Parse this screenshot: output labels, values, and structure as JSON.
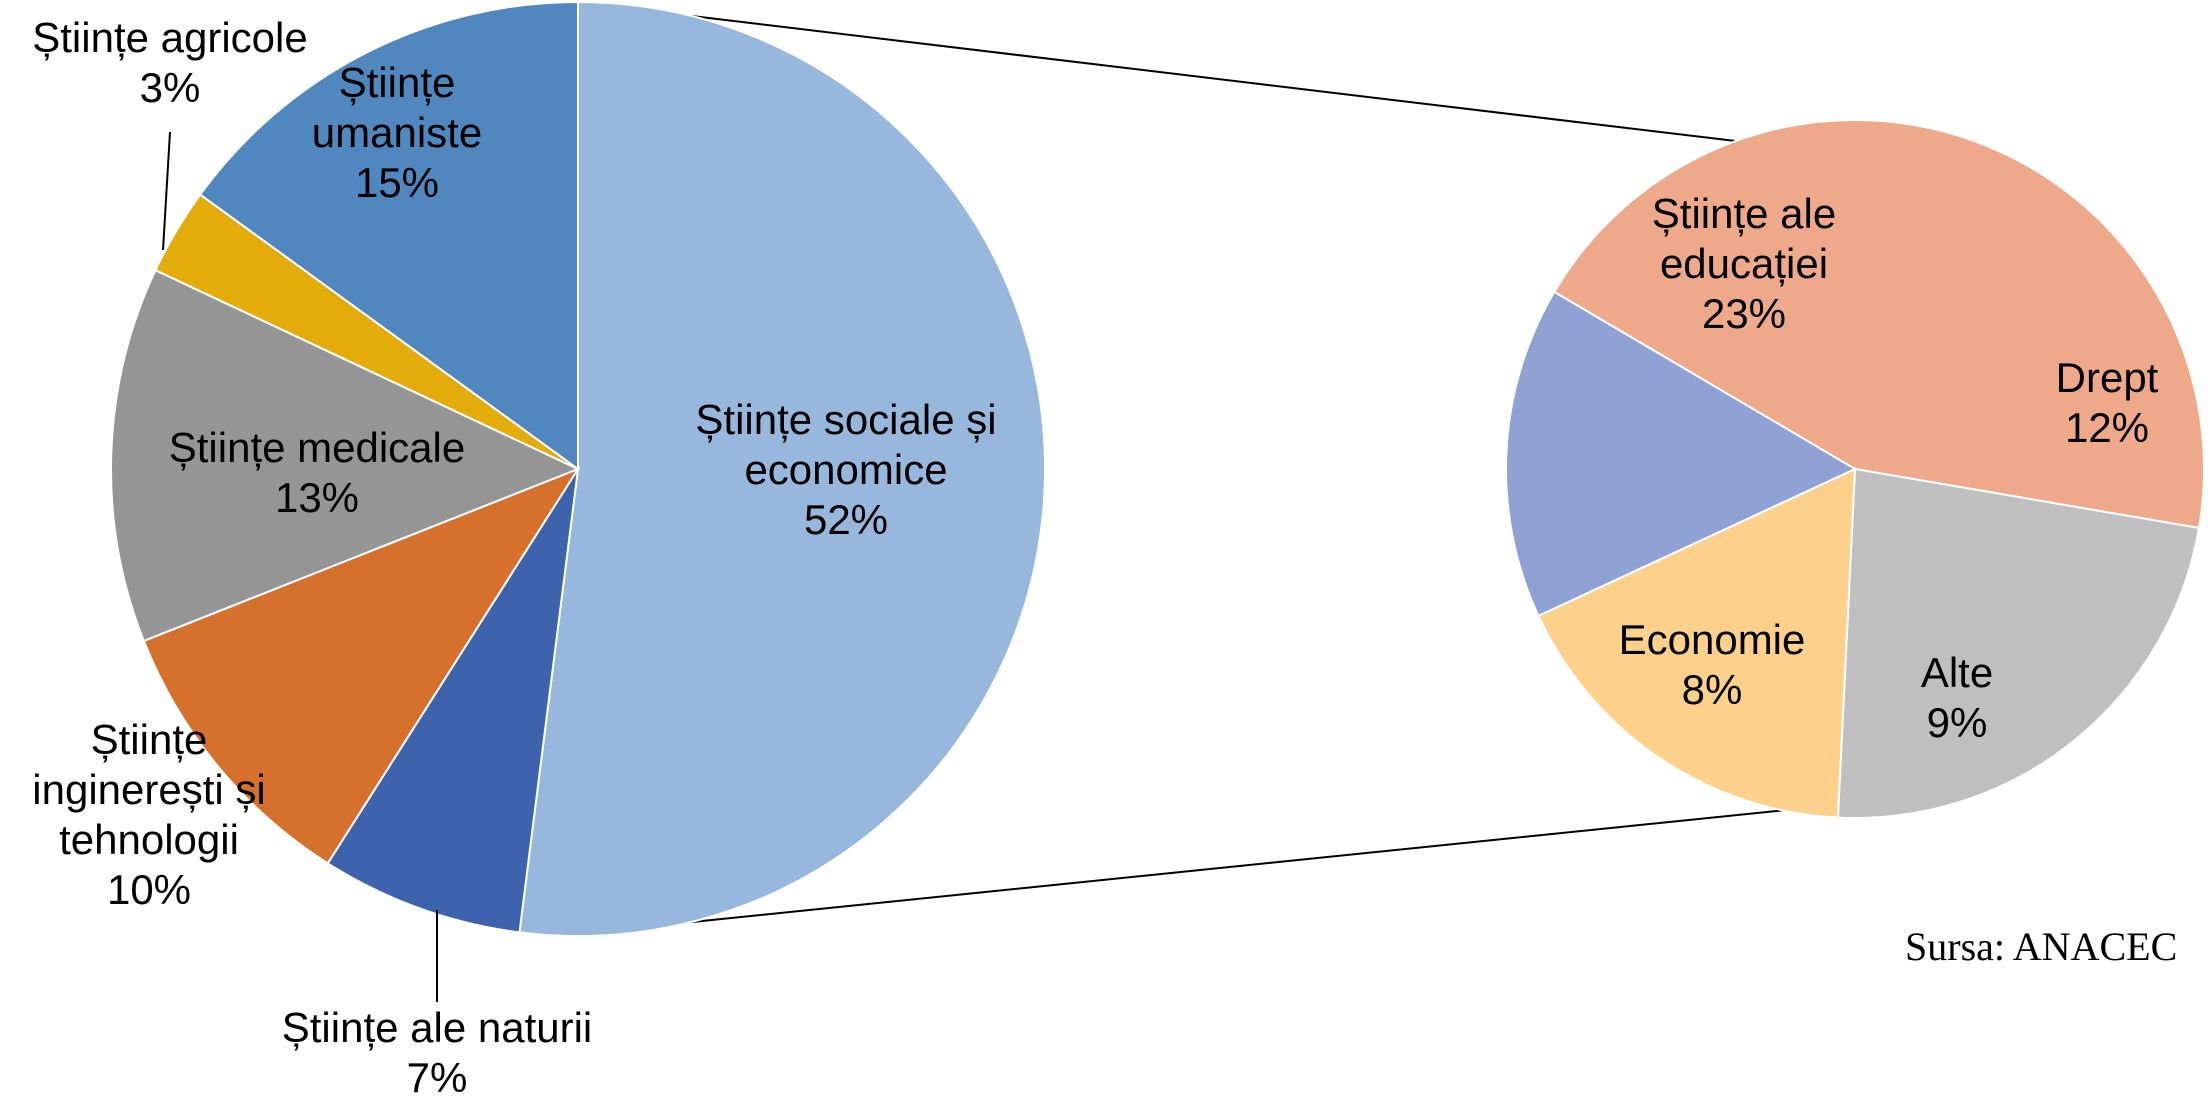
{
  "chart_data": [
    {
      "type": "pie",
      "categories": [
        "Științe sociale și economice",
        "Științe ale naturii",
        "Științe inginerești și tehnologii",
        "Științe medicale",
        "Științe agricole",
        "Științe umaniste"
      ],
      "values": [
        52,
        7,
        10,
        13,
        3,
        15
      ],
      "colors": [
        "#97b7dd",
        "#3d63ac",
        "#d6712d",
        "#959595",
        "#e3ac0b",
        "#4f87be"
      ],
      "labels": [
        {
          "lines": [
            "Științe sociale și",
            "economice",
            "52%"
          ],
          "placement": "inside"
        },
        {
          "lines": [
            "Științe ale naturii",
            "7%"
          ],
          "placement": "outside-bottom",
          "leader": true
        },
        {
          "lines": [
            "Științe",
            "inginerești și",
            "tehnologii",
            "10%"
          ],
          "placement": "outside-left"
        },
        {
          "lines": [
            "Științe medicale",
            "13%"
          ],
          "placement": "inside"
        },
        {
          "lines": [
            "Științe agricole",
            "3%"
          ],
          "placement": "outside-top-left",
          "leader": true
        },
        {
          "lines": [
            "Științe",
            "umaniste",
            "15%"
          ],
          "placement": "inside"
        }
      ]
    },
    {
      "type": "pie",
      "categories": [
        "Științe ale educației",
        "Drept",
        "Alte",
        "Economie"
      ],
      "values": [
        23,
        12,
        9,
        8
      ],
      "colors": [
        "#eea88a",
        "#bfbfbf",
        "#fdd18b",
        "#8fa2d3"
      ],
      "labels": [
        {
          "lines": [
            "Științe ale",
            "educației",
            "23%"
          ],
          "placement": "inside"
        },
        {
          "lines": [
            "Drept",
            "12%"
          ],
          "placement": "inside"
        },
        {
          "lines": [
            "Alte",
            "9%"
          ],
          "placement": "inside"
        },
        {
          "lines": [
            "Economie",
            "8%"
          ],
          "placement": "inside"
        }
      ]
    }
  ],
  "source_note": "Sursa: ANACEC"
}
